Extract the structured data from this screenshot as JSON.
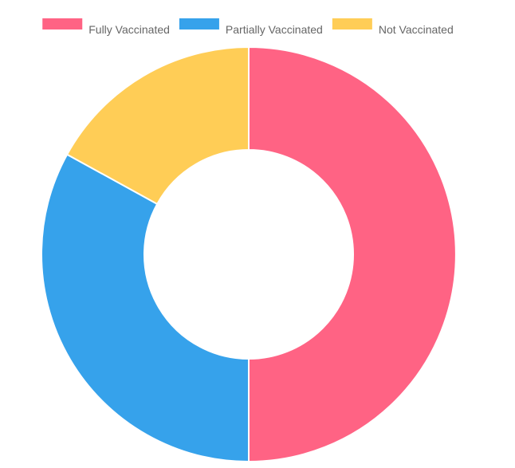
{
  "chart_data": {
    "type": "doughnut",
    "title": "",
    "legend_position": "top",
    "categories": [
      "Fully Vaccinated",
      "Partially Vaccinated",
      "Not Vaccinated"
    ],
    "values": [
      50,
      33,
      17
    ],
    "colors": [
      "#FF6384",
      "#36A2EB",
      "#FFCD56"
    ],
    "series": [
      {
        "values": [
          50,
          33,
          17
        ]
      }
    ],
    "legend": [
      {
        "label": "Fully Vaccinated",
        "color": "#FF6384"
      },
      {
        "label": "Partially Vaccinated",
        "color": "#36A2EB"
      },
      {
        "label": "Not Vaccinated",
        "color": "#FFCD56"
      }
    ]
  }
}
